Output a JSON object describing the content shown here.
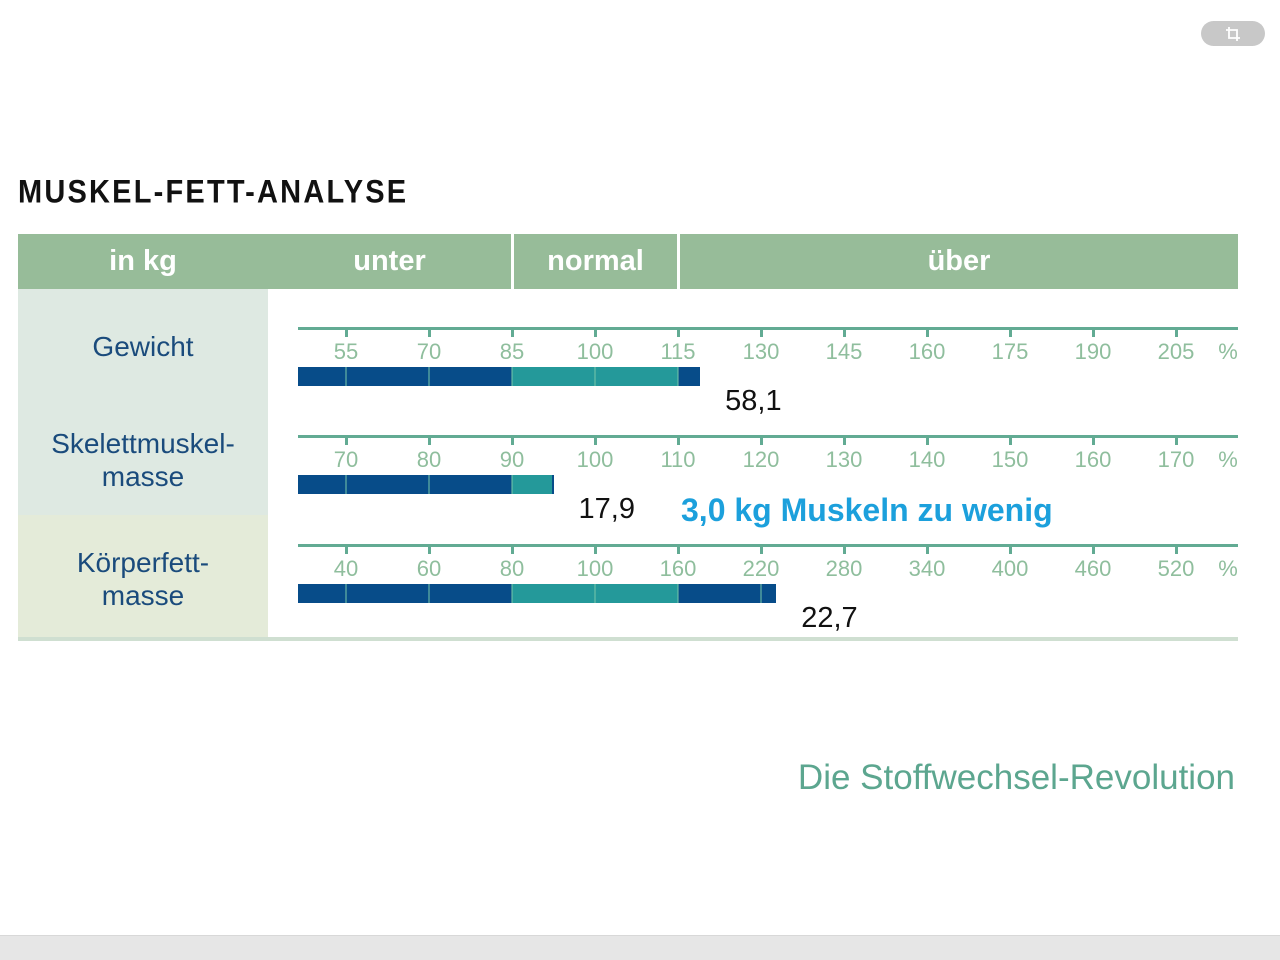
{
  "toolbar": {
    "crop_button_icon": "crop-icon"
  },
  "colors": {
    "header_green": "#97bc99",
    "label_bg": "#dee9e2",
    "label_bg_fat": "#e4ebd9",
    "label_text": "#1a4b7c",
    "axis": "#62ab93",
    "tick_text": "#8fbe9d",
    "bar_out_of_range": "#074c89",
    "bar_normal": "#24999a",
    "note_text": "#1ca0dc",
    "footer_text": "#5ca68f"
  },
  "chart_data": {
    "type": "bar",
    "orientation": "horizontal",
    "title": "MUSKEL-FETT-ANALYSE",
    "unit_label": "in kg",
    "zones": {
      "under": "unter",
      "normal": "normal",
      "over": "über"
    },
    "rows": [
      {
        "label_lines": [
          "Gewicht"
        ],
        "ticks": [
          "55",
          "70",
          "85",
          "100",
          "115",
          "130",
          "145",
          "160",
          "175",
          "190",
          "205"
        ],
        "tick_unit": "%",
        "normal_range": [
          85,
          115
        ],
        "percent": 119,
        "value": "58,1"
      },
      {
        "label_lines": [
          "Skelettmuskel-",
          "masse"
        ],
        "ticks": [
          "70",
          "80",
          "90",
          "100",
          "110",
          "120",
          "130",
          "140",
          "150",
          "160",
          "170"
        ],
        "tick_unit": "%",
        "normal_range": [
          90,
          110
        ],
        "percent": 95,
        "value": "17,9",
        "note": "3,0 kg Muskeln zu wenig"
      },
      {
        "label_lines": [
          "Körperfett-",
          "masse"
        ],
        "ticks": [
          "40",
          "60",
          "80",
          "100",
          "160",
          "220",
          "280",
          "340",
          "400",
          "460",
          "520"
        ],
        "tick_unit": "%",
        "normal_range": [
          80,
          160
        ],
        "percent": 231,
        "value": "22,7"
      }
    ]
  },
  "footer": {
    "title": "Die Stoffwechsel-Revolution"
  }
}
